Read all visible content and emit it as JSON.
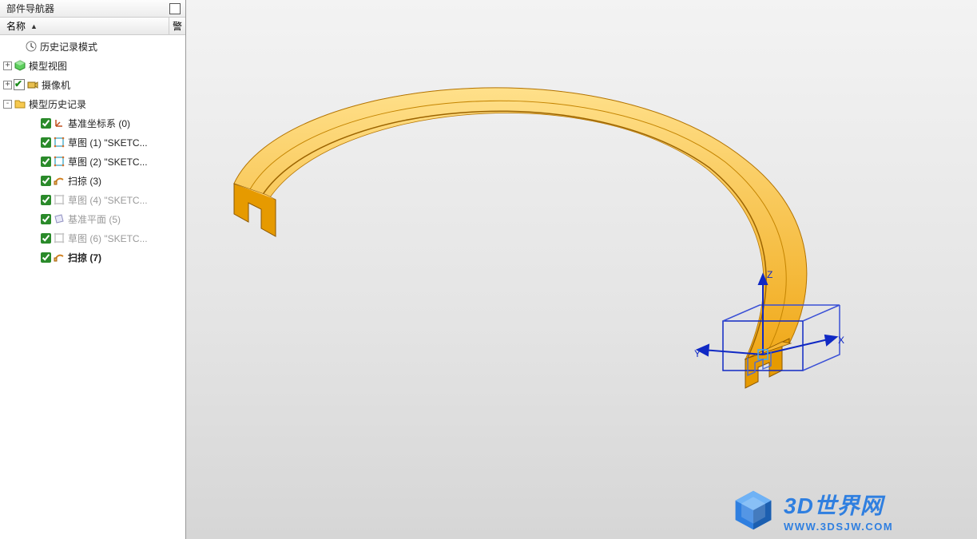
{
  "panel": {
    "title": "部件导航器",
    "col_name": "名称",
    "col_warn": "警"
  },
  "tree": [
    {
      "depth": 0,
      "expander": "",
      "check": false,
      "greenTick": false,
      "icon": "clock",
      "label": "历史记录模式",
      "muted": false,
      "bold": false
    },
    {
      "depth": 0,
      "expander": "+",
      "check": false,
      "greenTick": false,
      "icon": "model-view",
      "label": "模型视图",
      "muted": false,
      "bold": false
    },
    {
      "depth": 0,
      "expander": "+",
      "check": false,
      "greenTick": true,
      "icon": "camera",
      "label": "摄像机",
      "muted": false,
      "bold": false
    },
    {
      "depth": 0,
      "expander": "-",
      "check": false,
      "greenTick": false,
      "icon": "folder",
      "label": "模型历史记录",
      "muted": false,
      "bold": false
    },
    {
      "depth": 1,
      "expander": "",
      "check": true,
      "greenTick": false,
      "icon": "csys",
      "label": "基准坐标系 (0)",
      "muted": false,
      "bold": false
    },
    {
      "depth": 1,
      "expander": "",
      "check": true,
      "greenTick": false,
      "icon": "sketch",
      "label": "草图 (1) \"SKETC...",
      "muted": false,
      "bold": false
    },
    {
      "depth": 1,
      "expander": "",
      "check": true,
      "greenTick": false,
      "icon": "sketch",
      "label": "草图 (2) \"SKETC...",
      "muted": false,
      "bold": false
    },
    {
      "depth": 1,
      "expander": "",
      "check": true,
      "greenTick": false,
      "icon": "sweep",
      "label": "扫掠 (3)",
      "muted": false,
      "bold": false
    },
    {
      "depth": 1,
      "expander": "",
      "check": true,
      "greenTick": false,
      "icon": "sketch-muted",
      "label": "草图 (4) \"SKETC...",
      "muted": true,
      "bold": false
    },
    {
      "depth": 1,
      "expander": "",
      "check": true,
      "greenTick": false,
      "icon": "plane",
      "label": "基准平面 (5)",
      "muted": true,
      "bold": false
    },
    {
      "depth": 1,
      "expander": "",
      "check": true,
      "greenTick": false,
      "icon": "sketch-muted",
      "label": "草图 (6) \"SKETC...",
      "muted": true,
      "bold": false
    },
    {
      "depth": 1,
      "expander": "",
      "check": true,
      "greenTick": false,
      "icon": "sweep",
      "label": "扫掠 (7)",
      "muted": false,
      "bold": true
    }
  ],
  "triad": {
    "x": "X",
    "y": "Y",
    "z": "Z"
  },
  "watermark": {
    "title": "3D世界网",
    "url": "WWW.3DSJW.COM"
  },
  "colors": {
    "model_fill_light": "#ffc94a",
    "model_fill_dark": "#e69a00",
    "model_stroke": "#a56a00",
    "triad": "#1029c4",
    "triad_glow": "#3aa9ff",
    "wire": "#4a6bd6"
  }
}
